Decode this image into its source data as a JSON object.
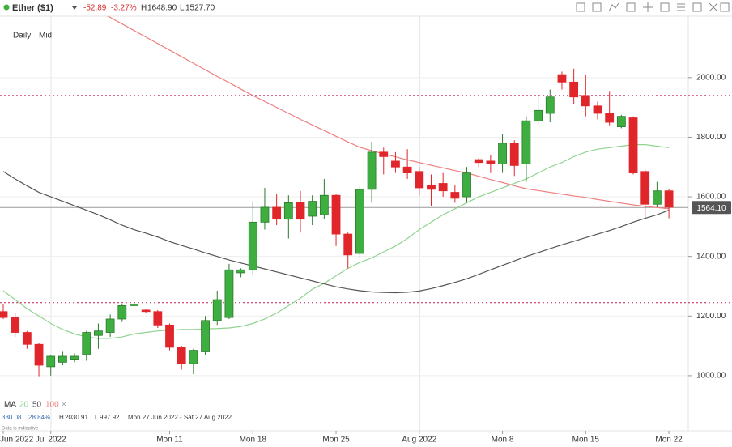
{
  "header": {
    "instrument": "Ether ($1)",
    "change": "-52.89",
    "change_pct": "-3.27%",
    "high_label": "H",
    "high": "1648.90",
    "low_label": "L",
    "low": "1527.70"
  },
  "toolbar": {
    "interval": "Daily",
    "price_type": "Mid"
  },
  "footer": {
    "ma_label": "MA",
    "close_icon": "×",
    "range_change": "330.08",
    "range_change_pct": "28.84%",
    "range_high_label": "H",
    "range_high": "2030.91",
    "range_low_label": "L",
    "range_low": "997.92",
    "range_dates": "Mon 27 Jun 2022 - Sat 27 Aug 2022",
    "disclaimer": "Data is indicative"
  },
  "chart_data": {
    "type": "candlestick",
    "categories": [
      "Jun 2022",
      null,
      null,
      null,
      "Jul 2022",
      null,
      null,
      null,
      null,
      null,
      null,
      null,
      null,
      null,
      "Mon 11",
      null,
      null,
      null,
      null,
      null,
      null,
      "Mon 18",
      null,
      null,
      null,
      null,
      null,
      null,
      "Mon 25",
      null,
      null,
      null,
      null,
      null,
      null,
      "Aug 2022",
      null,
      null,
      null,
      null,
      null,
      null,
      "Mon 8",
      null,
      null,
      null,
      null,
      null,
      null,
      "Mon 15",
      null,
      null,
      null,
      null,
      null,
      null,
      "Mon 22"
    ],
    "candles": {
      "up_color": "#3dae3f",
      "down_color": "#e0262a",
      "open": [
        1215,
        1195,
        1145,
        1105,
        1030,
        1045,
        1055,
        1070,
        1135,
        1145,
        1190,
        1235,
        1220,
        1215,
        1170,
        1095,
        1040,
        1080,
        1185,
        1195,
        1345,
        1355,
        1515,
        1565,
        1525,
        1580,
        1535,
        1540,
        1605,
        1475,
        1410,
        1625,
        1750,
        1720,
        1700,
        1685,
        1640,
        1645,
        1615,
        1600,
        1725,
        1720,
        1710,
        1780,
        1710,
        1855,
        1880,
        2010,
        1985,
        1940,
        1905,
        1880,
        1835,
        1865,
        1685,
        1575,
        1620
      ],
      "high": [
        1240,
        1210,
        1150,
        1110,
        1070,
        1080,
        1075,
        1150,
        1175,
        1205,
        1240,
        1275,
        1225,
        1220,
        1175,
        1100,
        1090,
        1200,
        1285,
        1375,
        1360,
        1585,
        1630,
        1610,
        1605,
        1620,
        1605,
        1660,
        1610,
        1480,
        1635,
        1785,
        1765,
        1750,
        1760,
        1700,
        1675,
        1680,
        1640,
        1700,
        1730,
        1740,
        1810,
        1790,
        1870,
        1940,
        1960,
        2020,
        2030,
        2010,
        1920,
        1955,
        1875,
        1870,
        1690,
        1650,
        1625
      ],
      "low": [
        1190,
        1130,
        1090,
        998,
        1000,
        1035,
        1045,
        1050,
        1090,
        1130,
        1180,
        1210,
        1210,
        1160,
        1085,
        1020,
        1005,
        1070,
        1170,
        1190,
        1330,
        1340,
        1490,
        1505,
        1460,
        1480,
        1505,
        1525,
        1435,
        1360,
        1395,
        1580,
        1675,
        1680,
        1660,
        1605,
        1570,
        1600,
        1580,
        1580,
        1700,
        1680,
        1680,
        1670,
        1650,
        1845,
        1850,
        1960,
        1910,
        1870,
        1860,
        1840,
        1830,
        1675,
        1525,
        1565,
        1528
      ],
      "close": [
        1195,
        1145,
        1105,
        1035,
        1065,
        1065,
        1065,
        1145,
        1150,
        1190,
        1235,
        1240,
        1215,
        1170,
        1095,
        1040,
        1085,
        1185,
        1255,
        1355,
        1355,
        1515,
        1565,
        1525,
        1580,
        1525,
        1585,
        1605,
        1475,
        1405,
        1625,
        1750,
        1735,
        1700,
        1680,
        1630,
        1625,
        1620,
        1595,
        1680,
        1715,
        1710,
        1780,
        1705,
        1855,
        1890,
        1935,
        1985,
        1935,
        1905,
        1880,
        1850,
        1870,
        1680,
        1575,
        1620,
        1565
      ]
    },
    "moving_averages": [
      {
        "name": "20",
        "color": "#8fd38f",
        "values": [
          1285,
          1255,
          1225,
          1200,
          1175,
          1155,
          1140,
          1130,
          1125,
          1125,
          1130,
          1140,
          1145,
          1150,
          1152,
          1155,
          1155,
          1157,
          1158,
          1160,
          1165,
          1175,
          1190,
          1210,
          1235,
          1260,
          1290,
          1310,
          1335,
          1360,
          1380,
          1395,
          1415,
          1435,
          1460,
          1490,
          1515,
          1540,
          1560,
          1580,
          1600,
          1615,
          1630,
          1645,
          1660,
          1680,
          1700,
          1715,
          1735,
          1750,
          1760,
          1765,
          1770,
          1775,
          1775,
          1770,
          1765
        ]
      },
      {
        "name": "50",
        "color": "#555555",
        "values": [
          1685,
          1660,
          1637,
          1615,
          1600,
          1585,
          1570,
          1555,
          1540,
          1523,
          1505,
          1490,
          1478,
          1465,
          1450,
          1437,
          1425,
          1412,
          1400,
          1388,
          1378,
          1368,
          1358,
          1348,
          1338,
          1328,
          1318,
          1308,
          1298,
          1291,
          1285,
          1281,
          1279,
          1278,
          1280,
          1284,
          1292,
          1302,
          1313,
          1325,
          1340,
          1355,
          1370,
          1385,
          1400,
          1413,
          1426,
          1439,
          1451,
          1463,
          1475,
          1487,
          1500,
          1515,
          1528,
          1540,
          1555
        ]
      },
      {
        "name": "100",
        "color": "#ef7f7f",
        "values": [
          2400,
          2378,
          2356,
          2334,
          2312,
          2290,
          2268,
          2246,
          2224,
          2202,
          2180,
          2158,
          2136,
          2114,
          2092,
          2070,
          2048,
          2026,
          2004,
          1983,
          1961,
          1940,
          1920,
          1900,
          1880,
          1860,
          1841,
          1822,
          1803,
          1784,
          1766,
          1755,
          1744,
          1734,
          1724,
          1715,
          1706,
          1697,
          1688,
          1680,
          1669,
          1658,
          1648,
          1637,
          1627,
          1621,
          1615,
          1609,
          1603,
          1598,
          1591,
          1585,
          1579,
          1573,
          1568,
          1564,
          1560
        ]
      }
    ],
    "reference_lines": [
      {
        "value": 1940,
        "color": "#c2185b"
      },
      {
        "value": 1245,
        "color": "#c2185b"
      }
    ],
    "last_price": {
      "value": 1564.1,
      "label": "1564.10",
      "color": "#555555"
    },
    "ylim": [
      815,
      2206
    ],
    "yticks": [
      {
        "value": 1000,
        "label": "1000.00"
      },
      {
        "value": 1200,
        "label": "1200.00"
      },
      {
        "value": 1400,
        "label": "1400.00"
      },
      {
        "value": 1600,
        "label": "1600.00"
      },
      {
        "value": 1800,
        "label": "1800.00"
      },
      {
        "value": 2000,
        "label": "2000.00"
      }
    ],
    "grid": true
  }
}
